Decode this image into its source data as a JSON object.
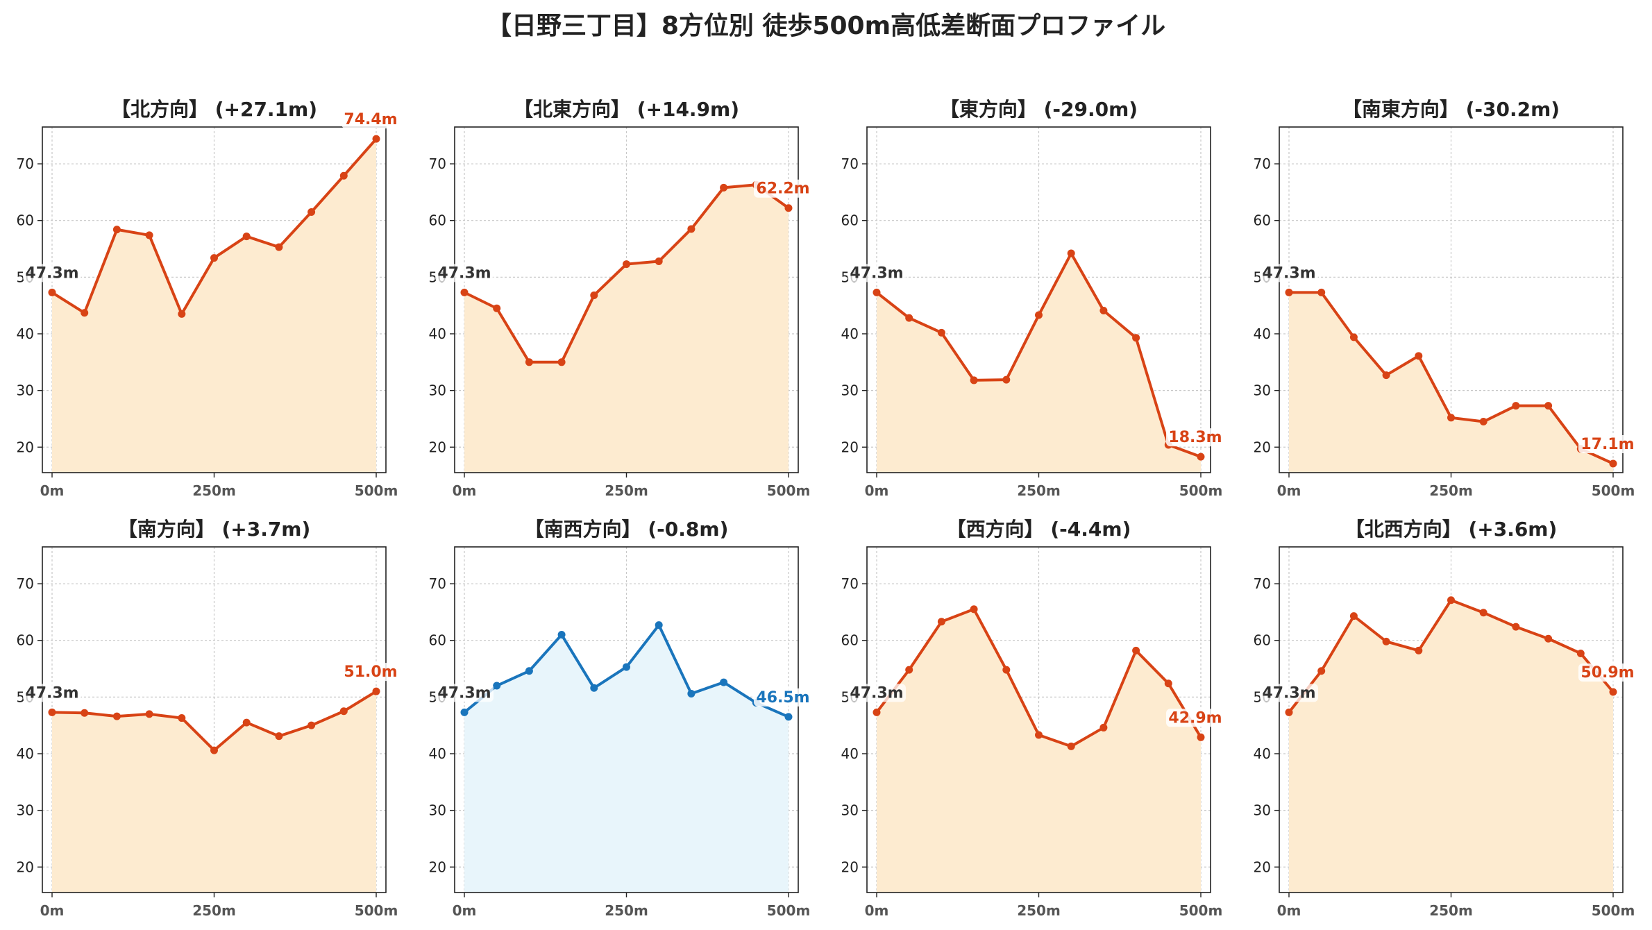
{
  "figure": {
    "title": "【日野三丁目】8方位別 徒歩500m高低差断面プロファイル"
  },
  "chart_data": [
    {
      "type": "area",
      "title": "【北方向】 (+27.1m)",
      "x": [
        0,
        50,
        100,
        150,
        200,
        250,
        300,
        350,
        400,
        450,
        500
      ],
      "y": [
        47.3,
        43.7,
        58.4,
        57.4,
        43.5,
        53.4,
        57.2,
        55.3,
        61.5,
        67.9,
        74.4
      ],
      "start_label": "47.3m",
      "end_label": "74.4m",
      "color": "#d84315",
      "fill": "#fdebd0",
      "xticks": [
        "0m",
        "250m",
        "500m"
      ],
      "yticks": [
        20,
        30,
        40,
        50,
        60,
        70
      ],
      "ylim": [
        15.5,
        76.5
      ],
      "grid": true
    },
    {
      "type": "area",
      "title": "【北東方向】 (+14.9m)",
      "x": [
        0,
        50,
        100,
        150,
        200,
        250,
        300,
        350,
        400,
        450,
        500
      ],
      "y": [
        47.3,
        44.5,
        35.0,
        35.0,
        46.8,
        52.3,
        52.8,
        58.5,
        65.8,
        66.3,
        62.2
      ],
      "start_label": "47.3m",
      "end_label": "62.2m",
      "color": "#d84315",
      "fill": "#fdebd0",
      "xticks": [
        "0m",
        "250m",
        "500m"
      ],
      "yticks": [
        20,
        30,
        40,
        50,
        60,
        70
      ],
      "ylim": [
        15.5,
        76.5
      ],
      "grid": true
    },
    {
      "type": "area",
      "title": "【東方向】 (-29.0m)",
      "x": [
        0,
        50,
        100,
        150,
        200,
        250,
        300,
        350,
        400,
        450,
        500
      ],
      "y": [
        47.3,
        42.8,
        40.2,
        31.8,
        31.9,
        43.3,
        54.2,
        44.1,
        39.3,
        20.4,
        18.3
      ],
      "start_label": "47.3m",
      "end_label": "18.3m",
      "color": "#d84315",
      "fill": "#fdebd0",
      "xticks": [
        "0m",
        "250m",
        "500m"
      ],
      "yticks": [
        20,
        30,
        40,
        50,
        60,
        70
      ],
      "ylim": [
        15.5,
        76.5
      ],
      "grid": true
    },
    {
      "type": "area",
      "title": "【南東方向】 (-30.2m)",
      "x": [
        0,
        50,
        100,
        150,
        200,
        250,
        300,
        350,
        400,
        450,
        500
      ],
      "y": [
        47.3,
        47.3,
        39.4,
        32.7,
        36.1,
        25.2,
        24.5,
        27.3,
        27.3,
        19.7,
        17.1
      ],
      "start_label": "47.3m",
      "end_label": "17.1m",
      "color": "#d84315",
      "fill": "#fdebd0",
      "xticks": [
        "0m",
        "250m",
        "500m"
      ],
      "yticks": [
        20,
        30,
        40,
        50,
        60,
        70
      ],
      "ylim": [
        15.5,
        76.5
      ],
      "grid": true
    },
    {
      "type": "area",
      "title": "【南方向】 (+3.7m)",
      "x": [
        0,
        50,
        100,
        150,
        200,
        250,
        300,
        350,
        400,
        450,
        500
      ],
      "y": [
        47.3,
        47.2,
        46.6,
        47.0,
        46.3,
        40.6,
        45.5,
        43.1,
        45.0,
        47.5,
        51.0
      ],
      "start_label": "47.3m",
      "end_label": "51.0m",
      "color": "#d84315",
      "fill": "#fdebd0",
      "xticks": [
        "0m",
        "250m",
        "500m"
      ],
      "yticks": [
        20,
        30,
        40,
        50,
        60,
        70
      ],
      "ylim": [
        15.5,
        76.5
      ],
      "grid": true
    },
    {
      "type": "area",
      "title": "【南西方向】 (-0.8m)",
      "x": [
        0,
        50,
        100,
        150,
        200,
        250,
        300,
        350,
        400,
        450,
        500
      ],
      "y": [
        47.3,
        52.0,
        54.6,
        61.0,
        51.6,
        55.3,
        62.7,
        50.6,
        52.6,
        49.0,
        46.5
      ],
      "start_label": "47.3m",
      "end_label": "46.5m",
      "color": "#1a75bc",
      "fill": "#e8f5fb",
      "xticks": [
        "0m",
        "250m",
        "500m"
      ],
      "yticks": [
        20,
        30,
        40,
        50,
        60,
        70
      ],
      "ylim": [
        15.5,
        76.5
      ],
      "grid": true
    },
    {
      "type": "area",
      "title": "【西方向】 (-4.4m)",
      "x": [
        0,
        50,
        100,
        150,
        200,
        250,
        300,
        350,
        400,
        450,
        500
      ],
      "y": [
        47.3,
        54.8,
        63.3,
        65.5,
        54.8,
        43.3,
        41.3,
        44.6,
        58.2,
        52.4,
        42.9
      ],
      "start_label": "47.3m",
      "end_label": "42.9m",
      "color": "#d84315",
      "fill": "#fdebd0",
      "xticks": [
        "0m",
        "250m",
        "500m"
      ],
      "yticks": [
        20,
        30,
        40,
        50,
        60,
        70
      ],
      "ylim": [
        15.5,
        76.5
      ],
      "grid": true
    },
    {
      "type": "area",
      "title": "【北西方向】 (+3.6m)",
      "x": [
        0,
        50,
        100,
        150,
        200,
        250,
        300,
        350,
        400,
        450,
        500
      ],
      "y": [
        47.3,
        54.6,
        64.3,
        59.8,
        58.2,
        67.1,
        64.9,
        62.4,
        60.3,
        57.7,
        50.9
      ],
      "start_label": "47.3m",
      "end_label": "50.9m",
      "color": "#d84315",
      "fill": "#fdebd0",
      "xticks": [
        "0m",
        "250m",
        "500m"
      ],
      "yticks": [
        20,
        30,
        40,
        50,
        60,
        70
      ],
      "ylim": [
        15.5,
        76.5
      ],
      "grid": true
    }
  ]
}
